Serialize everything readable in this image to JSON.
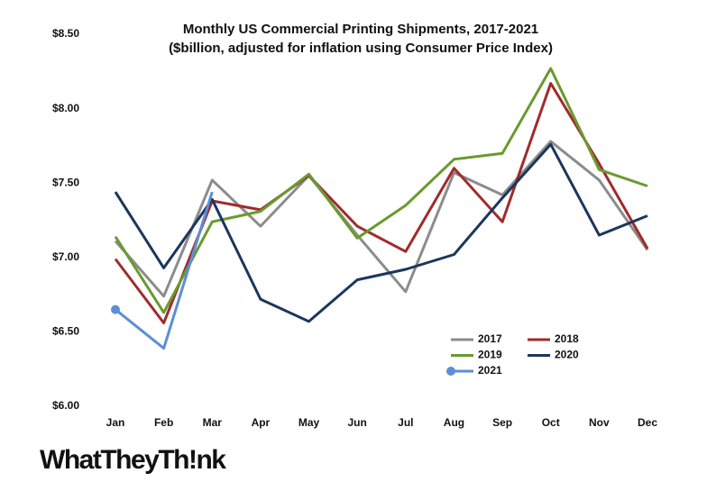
{
  "chart_data": {
    "type": "line",
    "title": "Monthly US Commercial Printing Shipments, 2017-2021",
    "subtitle": "($billion, adjusted for inflation using Consumer Price Index)",
    "logo": "WhatTheyTh!nk",
    "categories": [
      "Jan",
      "Feb",
      "Mar",
      "Apr",
      "May",
      "Jun",
      "Jul",
      "Aug",
      "Sep",
      "Oct",
      "Nov",
      "Dec"
    ],
    "series": [
      {
        "name": "2017",
        "color": "#8c8c8c",
        "values": [
          7.11,
          6.74,
          7.52,
          7.21,
          7.55,
          7.15,
          6.77,
          7.57,
          7.42,
          7.78,
          7.52,
          7.05
        ]
      },
      {
        "name": "2018",
        "color": "#a02b2b",
        "values": [
          6.99,
          6.56,
          7.38,
          7.32,
          7.55,
          7.21,
          7.04,
          7.6,
          7.24,
          8.17,
          7.63,
          7.06
        ]
      },
      {
        "name": "2019",
        "color": "#6a9a2f",
        "values": [
          7.14,
          6.63,
          7.24,
          7.31,
          7.56,
          7.13,
          7.35,
          7.66,
          7.7,
          8.27,
          7.59,
          7.48
        ]
      },
      {
        "name": "2020",
        "color": "#1b365d",
        "values": [
          7.44,
          6.93,
          7.39,
          6.72,
          6.57,
          6.85,
          6.92,
          7.02,
          7.4,
          7.76,
          7.15,
          7.28
        ]
      },
      {
        "name": "2021",
        "color": "#5b8fd6",
        "marker": "circle",
        "values": [
          6.65,
          6.39,
          7.44,
          null,
          null,
          null,
          null,
          null,
          null,
          null,
          null,
          null
        ]
      }
    ],
    "ylim": [
      6.0,
      8.5
    ],
    "yticks": [
      {
        "value": 6.0,
        "label": "$6.00"
      },
      {
        "value": 6.5,
        "label": "$6.50"
      },
      {
        "value": 7.0,
        "label": "$7.00"
      },
      {
        "value": 7.5,
        "label": "$7.50"
      },
      {
        "value": 8.0,
        "label": "$8.00"
      },
      {
        "value": 8.5,
        "label": "$8.50"
      }
    ],
    "grid": false
  }
}
